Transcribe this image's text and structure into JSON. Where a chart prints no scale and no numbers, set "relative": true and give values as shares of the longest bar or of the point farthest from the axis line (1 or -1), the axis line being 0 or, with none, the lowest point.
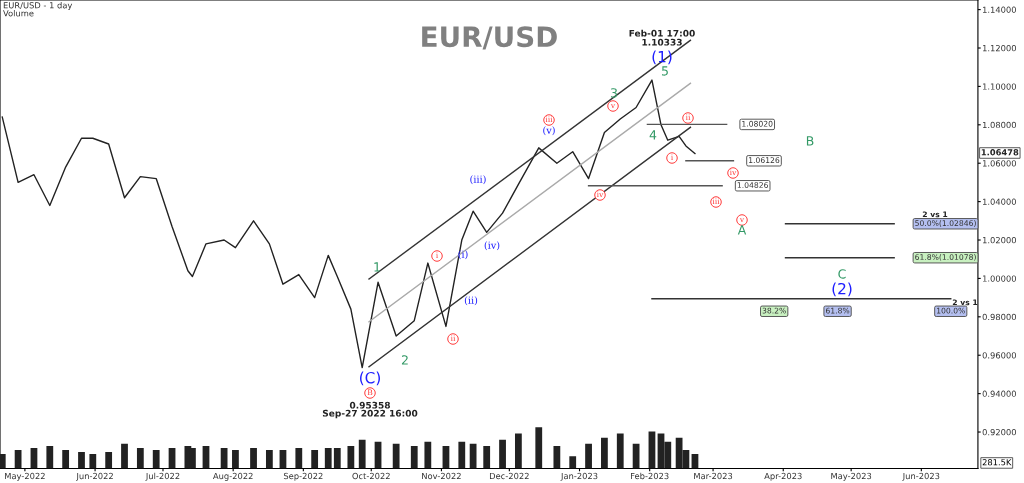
{
  "chart_data": [
    {
      "type": "line",
      "title": "EUR/USD",
      "xlim": [
        "2022-04-20",
        "2023-06-26"
      ],
      "ylim": [
        0.901,
        1.145
      ],
      "xticks": [
        {
          "value": "2022-05-01",
          "label": "May-2022"
        },
        {
          "value": "2022-06-01",
          "label": "Jun-2022"
        },
        {
          "value": "2022-07-01",
          "label": "Jul-2022"
        },
        {
          "value": "2022-08-01",
          "label": "Aug-2022"
        },
        {
          "value": "2022-09-01",
          "label": "Sep-2022"
        },
        {
          "value": "2022-10-01",
          "label": "Oct-2022"
        },
        {
          "value": "2022-11-01",
          "label": "Nov-2022"
        },
        {
          "value": "2022-12-01",
          "label": "Dec-2022"
        },
        {
          "value": "2023-01-01",
          "label": "Jan-2023"
        },
        {
          "value": "2023-02-01",
          "label": "Feb-2023"
        },
        {
          "value": "2023-03-01",
          "label": "Mar-2023"
        },
        {
          "value": "2023-04-01",
          "label": "Apr-2023"
        },
        {
          "value": "2023-05-01",
          "label": "May-2023"
        },
        {
          "value": "2023-06-01",
          "label": "Jun-2023"
        }
      ],
      "yticks": [
        {
          "value": 0.92,
          "label": "0.92000"
        },
        {
          "value": 0.94,
          "label": "0.94000"
        },
        {
          "value": 0.96,
          "label": "0.96000"
        },
        {
          "value": 0.98,
          "label": "0.98000"
        },
        {
          "value": 1.0,
          "label": "1.00000"
        },
        {
          "value": 1.02,
          "label": "1.02000"
        },
        {
          "value": 1.04,
          "label": "1.04000"
        },
        {
          "value": 1.06,
          "label": "1.06000"
        },
        {
          "value": 1.08,
          "label": "1.08000"
        },
        {
          "value": 1.1,
          "label": "1.10000"
        },
        {
          "value": 1.12,
          "label": "1.12000"
        },
        {
          "value": 1.14,
          "label": "1.14000"
        }
      ],
      "grid": false,
      "legend": false,
      "series": [
        {
          "color": "#222222",
          "x": [
            "2022-04-21",
            "2022-04-28",
            "2022-05-05",
            "2022-05-12",
            "2022-05-19",
            "2022-05-26",
            "2022-05-31",
            "2022-06-07",
            "2022-06-14",
            "2022-06-21",
            "2022-06-28",
            "2022-07-05",
            "2022-07-12",
            "2022-07-14",
            "2022-07-20",
            "2022-07-28",
            "2022-08-02",
            "2022-08-10",
            "2022-08-17",
            "2022-08-23",
            "2022-08-30",
            "2022-09-06",
            "2022-09-12",
            "2022-09-16",
            "2022-09-22",
            "2022-09-27",
            "2022-10-04",
            "2022-10-12",
            "2022-10-20",
            "2022-10-26",
            "2022-11-03",
            "2022-11-10",
            "2022-11-15",
            "2022-11-21",
            "2022-11-28",
            "2022-12-05",
            "2022-12-14",
            "2022-12-22",
            "2022-12-29",
            "2023-01-05",
            "2023-01-12",
            "2023-01-19",
            "2023-01-26",
            "2023-02-02",
            "2023-02-06",
            "2023-02-09",
            "2023-02-14",
            "2023-02-17",
            "2023-02-21"
          ],
          "values": [
            1.084,
            1.05,
            1.054,
            1.038,
            1.058,
            1.073,
            1.073,
            1.07,
            1.042,
            1.053,
            1.052,
            1.027,
            1.004,
            1.001,
            1.018,
            1.02,
            1.016,
            1.03,
            1.018,
            0.997,
            1.002,
            0.99,
            1.012,
            1.001,
            0.984,
            0.9536,
            0.998,
            0.97,
            0.978,
            1.008,
            0.975,
            1.02,
            1.035,
            1.024,
            1.034,
            1.049,
            1.068,
            1.06,
            1.066,
            1.052,
            1.076,
            1.083,
            1.089,
            1.1033,
            1.08,
            1.072,
            1.074,
            1.069,
            1.065
          ]
        },
        {
          "type": "line",
          "color": "#333333",
          "x": [
            "2022-09-30",
            "2023-02-19"
          ],
          "values": [
            0.9997,
            1.124
          ]
        },
        {
          "type": "line",
          "color": "#aaaaaa",
          "x": [
            "2022-09-30",
            "2023-02-19"
          ],
          "values": [
            0.9774,
            1.1016
          ]
        },
        {
          "type": "line",
          "color": "#333333",
          "x": [
            "2022-09-30",
            "2023-02-19"
          ],
          "values": [
            0.954,
            1.0787
          ]
        },
        {
          "type": "line",
          "color": "#555555",
          "x": [
            "2023-01-31",
            "2023-03-07"
          ],
          "values": [
            1.0802,
            1.0802
          ]
        },
        {
          "type": "line",
          "color": "#555555",
          "x": [
            "2023-02-17",
            "2023-03-10"
          ],
          "values": [
            1.06126,
            1.06126
          ]
        },
        {
          "type": "line",
          "color": "#555555",
          "x": [
            "2023-01-05",
            "2023-03-05"
          ],
          "values": [
            1.04826,
            1.04826
          ]
        },
        {
          "type": "line",
          "color": "#333333",
          "x": [
            "2023-04-02",
            "2023-05-20"
          ],
          "values": [
            1.02846,
            1.02846
          ]
        },
        {
          "type": "line",
          "color": "#333333",
          "x": [
            "2023-04-02",
            "2023-05-20"
          ],
          "values": [
            1.01078,
            1.01078
          ]
        },
        {
          "type": "line",
          "color": "#333333",
          "x": [
            "2023-02-02",
            "2023-06-14"
          ],
          "values": [
            0.9894,
            0.9894
          ]
        }
      ],
      "annotations": [
        "EUR/USD - 1 day",
        "Volume",
        "(C)",
        "B",
        "0.95358",
        "Sep-27 2022 16:00",
        "1",
        "2",
        "i",
        "ii",
        "(i)",
        "(ii)",
        "(iii)",
        "(iv)",
        "iii",
        "(v)",
        "iv",
        "v",
        "3",
        "4",
        "5",
        "(1)",
        "Feb-01 17:00",
        "1.10333",
        "i",
        "ii",
        {
          "text": "1.08020",
          "x": "2023-03-07",
          "y": 1.0802
        },
        {
          "text": "1.06126",
          "x": "2023-03-10",
          "y": 1.06126
        },
        {
          "text": "1.04826",
          "x": "2023-03-05",
          "y": 1.04826
        },
        "iv",
        "iii",
        "v",
        "A",
        "B",
        "C",
        "(2)",
        "2 vs 1",
        {
          "text": "50.0%(1.02846)",
          "x": "2023-05-20",
          "y": 1.02846
        },
        {
          "text": "61.8%(1.01078)",
          "x": "2023-05-20",
          "y": 1.01078
        },
        {
          "text": "38.2%",
          "x": "2023-03-28",
          "y": 0.9894
        },
        {
          "text": "61.8%",
          "x": "2023-04-25",
          "y": 0.9894
        },
        {
          "text": "100.0%",
          "x": "2023-06-14",
          "y": 0.9894
        },
        "2 vs 1",
        "1.06478"
      ]
    },
    {
      "type": "bar",
      "relative": true,
      "color": "#222222",
      "xlim": [
        "2022-04-20",
        "2023-06-26"
      ],
      "x": [
        "2022-04-21",
        "2022-04-28",
        "2022-05-05",
        "2022-05-12",
        "2022-05-19",
        "2022-05-26",
        "2022-05-31",
        "2022-06-07",
        "2022-06-14",
        "2022-06-21",
        "2022-06-28",
        "2022-07-05",
        "2022-07-12",
        "2022-07-14",
        "2022-07-20",
        "2022-07-28",
        "2022-08-02",
        "2022-08-10",
        "2022-08-17",
        "2022-08-23",
        "2022-08-30",
        "2022-09-06",
        "2022-09-12",
        "2022-09-16",
        "2022-09-22",
        "2022-09-27",
        "2022-10-04",
        "2022-10-12",
        "2022-10-20",
        "2022-10-26",
        "2022-11-03",
        "2022-11-10",
        "2022-11-15",
        "2022-11-21",
        "2022-11-28",
        "2022-12-05",
        "2022-12-14",
        "2022-12-22",
        "2022-12-29",
        "2023-01-05",
        "2023-01-12",
        "2023-01-19",
        "2023-01-26",
        "2023-02-02",
        "2023-02-06",
        "2023-02-09",
        "2023-02-14",
        "2023-02-17",
        "2023-02-21"
      ],
      "values": [
        0.35,
        0.45,
        0.5,
        0.55,
        0.45,
        0.4,
        0.35,
        0.4,
        0.6,
        0.5,
        0.45,
        0.5,
        0.55,
        0.5,
        0.55,
        0.5,
        0.45,
        0.5,
        0.45,
        0.45,
        0.5,
        0.45,
        0.5,
        0.5,
        0.55,
        0.7,
        0.65,
        0.6,
        0.55,
        0.65,
        0.55,
        0.65,
        0.6,
        0.55,
        0.7,
        0.85,
        1.0,
        0.55,
        0.3,
        0.6,
        0.75,
        0.85,
        0.6,
        0.9,
        0.85,
        0.65,
        0.75,
        0.45,
        0.35
      ],
      "annotations": [
        "281.5K"
      ]
    }
  ]
}
